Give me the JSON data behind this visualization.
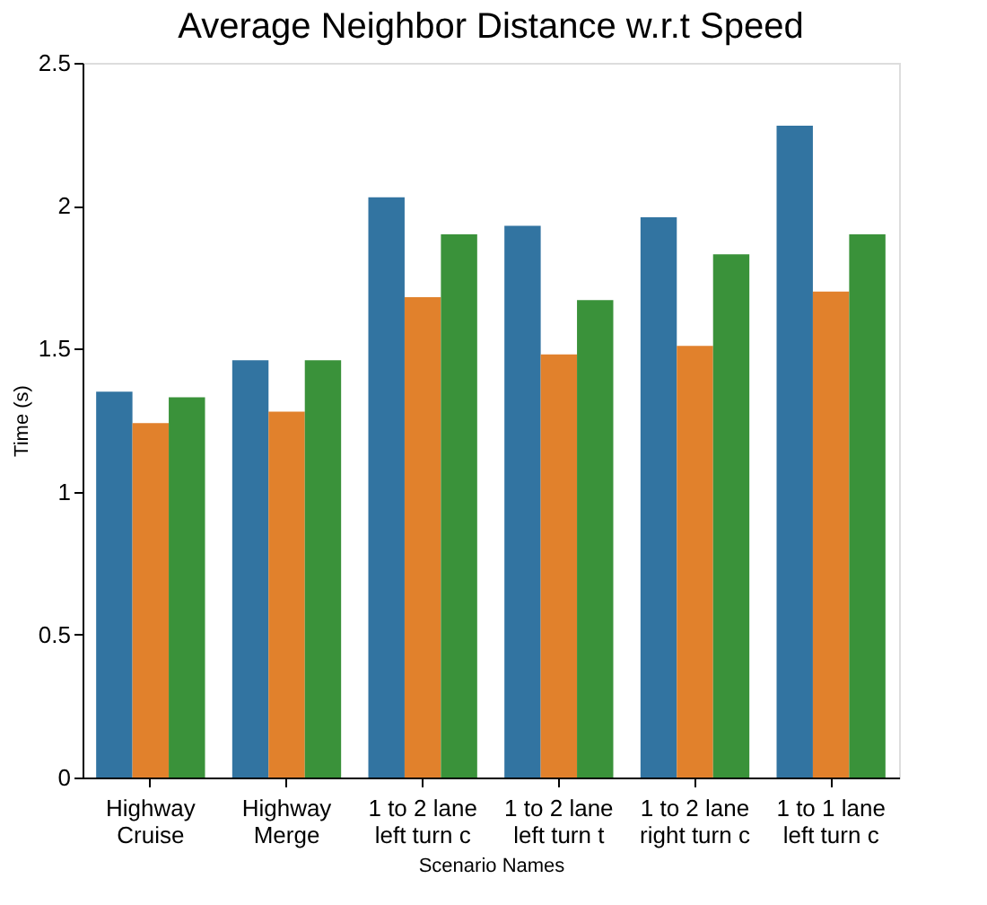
{
  "chart_data": {
    "type": "bar",
    "title": "Average Neighbor Distance w.r.t Speed",
    "xlabel": "Scenario Names",
    "ylabel": "Time (s)",
    "categories": [
      "Highway Cruise",
      "Highway Merge",
      "1 to 2 lane left turn c",
      "1 to 2 lane left turn t",
      "1 to 2 lane right turn c",
      "1 to 1 lane left turn c"
    ],
    "series": [
      {
        "color": "#3274a1",
        "values": [
          1.35,
          1.46,
          2.03,
          1.93,
          1.96,
          2.28
        ]
      },
      {
        "color": "#e1812c",
        "values": [
          1.24,
          1.28,
          1.68,
          1.48,
          1.51,
          1.7
        ]
      },
      {
        "color": "#3a923a",
        "values": [
          1.33,
          1.46,
          1.9,
          1.67,
          1.83,
          1.9
        ]
      }
    ],
    "ylim": [
      0,
      2.5
    ],
    "yticks": [
      0,
      0.5,
      1,
      1.5,
      2,
      2.5
    ],
    "grid": false,
    "legend": false
  }
}
